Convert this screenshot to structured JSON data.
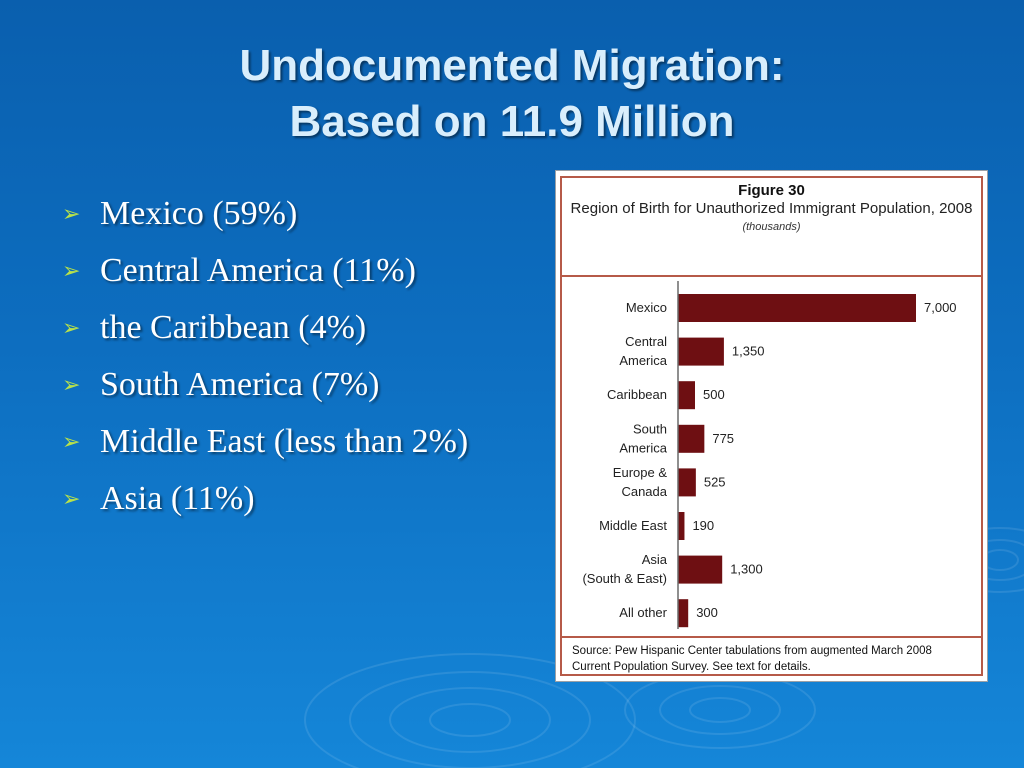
{
  "slide": {
    "title_line1": "Undocumented Migration:",
    "title_line2": "Based on 11.9 Million",
    "bullets": [
      "Mexico (59%)",
      "Central America (11%)",
      "the Caribbean (4%)",
      "South America (7%)",
      "Middle East (less than 2%)",
      "Asia (11%)"
    ]
  },
  "chart_data": {
    "type": "bar",
    "orientation": "horizontal",
    "figure_label": "Figure 30",
    "title": "Region of Birth for Unauthorized Immigrant Population, 2008",
    "subtitle": "(thousands)",
    "categories": [
      [
        "Mexico"
      ],
      [
        "Central",
        "America"
      ],
      [
        "Caribbean"
      ],
      [
        "South",
        "America"
      ],
      [
        "Europe &",
        "Canada"
      ],
      [
        "Middle East"
      ],
      [
        "Asia",
        "(South & East)"
      ],
      [
        "All other"
      ]
    ],
    "values": [
      7000,
      1350,
      500,
      775,
      525,
      190,
      1300,
      300
    ],
    "value_labels": [
      "7,000",
      "1,350",
      "500",
      "775",
      "525",
      "190",
      "1,300",
      "300"
    ],
    "xlim": [
      0,
      7000
    ],
    "bar_color": "#6e0f12",
    "source": "Source: Pew Hispanic Center tabulations from augmented March 2008 Current Population Survey. See text for details."
  }
}
